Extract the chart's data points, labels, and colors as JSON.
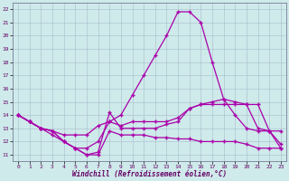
{
  "xlabel": "Windchill (Refroidissement éolien,°C)",
  "background_color": "#ceeaea",
  "grid_color": "#aabbcc",
  "line_color": "#aa00aa",
  "xlim": [
    -0.5,
    23.5
  ],
  "ylim": [
    10.5,
    22.5
  ],
  "xticks": [
    0,
    1,
    2,
    3,
    4,
    5,
    6,
    7,
    8,
    9,
    10,
    11,
    12,
    13,
    14,
    15,
    16,
    17,
    18,
    19,
    20,
    21,
    22,
    23
  ],
  "yticks": [
    11,
    12,
    13,
    14,
    15,
    16,
    17,
    18,
    19,
    20,
    21,
    22
  ],
  "lines": [
    {
      "x": [
        0,
        1,
        2,
        3,
        4,
        5,
        6,
        7,
        8,
        9,
        10,
        11,
        12,
        13,
        14,
        15,
        16,
        17,
        18,
        19,
        20,
        21,
        22,
        23
      ],
      "y": [
        14.0,
        13.5,
        13.0,
        12.5,
        12.0,
        11.5,
        11.5,
        12.0,
        13.5,
        14.0,
        15.5,
        17.0,
        18.5,
        20.0,
        21.8,
        21.8,
        21.0,
        18.0,
        15.2,
        14.0,
        13.0,
        12.8,
        12.8,
        11.5
      ]
    },
    {
      "x": [
        0,
        1,
        2,
        3,
        4,
        5,
        6,
        7,
        8,
        9,
        10,
        11,
        12,
        13,
        14,
        15,
        16,
        17,
        18,
        19,
        20,
        21,
        22,
        23
      ],
      "y": [
        14.0,
        13.5,
        13.0,
        12.8,
        12.5,
        12.5,
        12.5,
        13.2,
        13.5,
        13.2,
        13.5,
        13.5,
        13.5,
        13.5,
        13.8,
        14.5,
        14.8,
        15.0,
        15.2,
        15.0,
        14.8,
        13.0,
        12.8,
        11.8
      ]
    },
    {
      "x": [
        0,
        1,
        2,
        3,
        4,
        5,
        6,
        7,
        8,
        9,
        10,
        11,
        12,
        13,
        14,
        15,
        16,
        17,
        18,
        19,
        20,
        21,
        22,
        23
      ],
      "y": [
        14.0,
        13.5,
        13.0,
        12.8,
        12.0,
        11.5,
        11.0,
        11.2,
        14.2,
        13.0,
        13.0,
        13.0,
        13.0,
        13.3,
        13.5,
        14.5,
        14.8,
        14.8,
        14.8,
        14.8,
        14.8,
        14.8,
        12.8,
        12.8
      ]
    },
    {
      "x": [
        0,
        1,
        2,
        3,
        4,
        5,
        6,
        7,
        8,
        9,
        10,
        11,
        12,
        13,
        14,
        15,
        16,
        17,
        18,
        19,
        20,
        21,
        22,
        23
      ],
      "y": [
        14.0,
        13.5,
        13.0,
        12.8,
        12.0,
        11.5,
        11.0,
        11.0,
        12.8,
        12.5,
        12.5,
        12.5,
        12.3,
        12.3,
        12.2,
        12.2,
        12.0,
        12.0,
        12.0,
        12.0,
        11.8,
        11.5,
        11.5,
        11.5
      ]
    }
  ]
}
